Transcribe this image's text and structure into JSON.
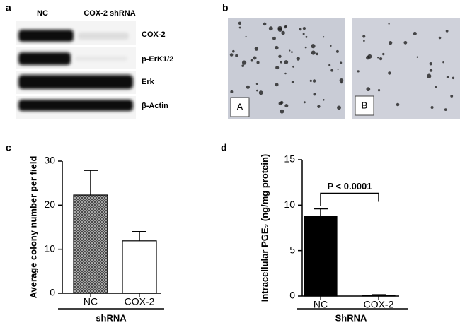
{
  "panels": [
    "a",
    "b",
    "c",
    "d"
  ],
  "blot": {
    "lanes": [
      "NC",
      "COX-2 shRNA"
    ],
    "proteins": [
      "COX-2",
      "p-ErK1/2",
      "Erk",
      "β-Actin"
    ]
  },
  "images": [
    "A",
    "B"
  ],
  "chart_data": [
    {
      "type": "bar",
      "ylabel": "Average colony number per field",
      "categories": [
        "NC",
        "COX-2"
      ],
      "group_label": "shRNA",
      "values": [
        22.3,
        11.9
      ],
      "errors": [
        5.6,
        2.1
      ],
      "colors": [
        "#9a9a9a",
        "#ffffff"
      ],
      "hatched": [
        true,
        false
      ],
      "ylim": [
        0,
        30
      ],
      "yticks": [
        0,
        10,
        20,
        30
      ]
    },
    {
      "type": "bar",
      "ylabel": "Intracellular PGE₂ (ng/mg protein)",
      "categories": [
        "NC",
        "COX-2"
      ],
      "group_label": "ShRNA",
      "values": [
        8.8,
        0.1
      ],
      "errors": [
        0.8,
        0.05
      ],
      "colors": [
        "#000000",
        "#000000"
      ],
      "hatched": [
        false,
        false
      ],
      "annotation": "P < 0.0001",
      "ylim": [
        0,
        15
      ],
      "yticks": [
        0,
        5,
        10,
        15
      ]
    }
  ]
}
